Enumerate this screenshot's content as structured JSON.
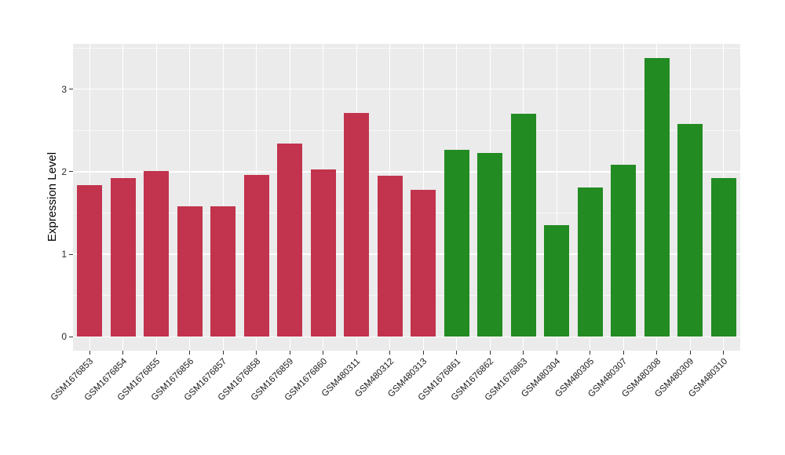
{
  "chart_data": {
    "type": "bar",
    "title": "",
    "ylabel": "Expression Level",
    "xlabel": "",
    "categories": [
      "GSM1676853",
      "GSM1676854",
      "GSM1676855",
      "GSM1676856",
      "GSM1676857",
      "GSM1676858",
      "GSM1676859",
      "GSM1676860",
      "GSM480311",
      "GSM480312",
      "GSM480313",
      "GSM1676861",
      "GSM1676862",
      "GSM1676863",
      "GSM480304",
      "GSM480305",
      "GSM480307",
      "GSM480308",
      "GSM480309",
      "GSM480310"
    ],
    "values": [
      1.84,
      1.92,
      2.01,
      1.58,
      1.58,
      1.96,
      2.34,
      2.03,
      2.71,
      1.95,
      1.78,
      2.27,
      2.23,
      2.7,
      1.35,
      1.81,
      2.08,
      3.38,
      2.58,
      1.92
    ],
    "bar_groups": [
      0,
      0,
      0,
      0,
      0,
      0,
      0,
      0,
      0,
      0,
      0,
      1,
      1,
      1,
      1,
      1,
      1,
      1,
      1,
      1
    ],
    "palette": [
      "#C2334D",
      "#228B22"
    ],
    "yticks": [
      0,
      1,
      2,
      3
    ],
    "yticks_minor": [
      0.5,
      1.5,
      2.5,
      3.5
    ],
    "ylim": [
      -0.17,
      3.55
    ],
    "grid": "white major and minor gridlines on grey panel",
    "legend_position": "none",
    "x_label_rotation_deg": 45,
    "panel_background": "#EBEBEB",
    "gridline_color": "#FFFFFF",
    "tick_color": "#333333"
  }
}
